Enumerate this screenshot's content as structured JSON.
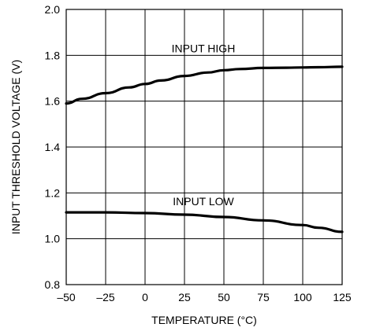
{
  "chart_data": {
    "type": "line",
    "title": "",
    "xlabel": "TEMPERATURE (°C)",
    "ylabel": "INPUT THRESHOLD VOLTAGE (V)",
    "xlim": [
      -50,
      125
    ],
    "ylim": [
      0.8,
      2.0
    ],
    "x_ticks": [
      -50,
      -25,
      0,
      25,
      50,
      75,
      100,
      125
    ],
    "x_tick_labels": [
      "–50",
      "–25",
      "0",
      "25",
      "50",
      "75",
      "100",
      "125"
    ],
    "y_ticks": [
      0.8,
      1.0,
      1.2,
      1.4,
      1.6,
      1.8,
      2.0
    ],
    "y_tick_labels": [
      "0.8",
      "1.0",
      "1.2",
      "1.4",
      "1.6",
      "1.8",
      "2.0"
    ],
    "grid": true,
    "legend": "none",
    "series": [
      {
        "name": "INPUT HIGH",
        "x": [
          -50,
          -40,
          -25,
          -10,
          0,
          10,
          25,
          40,
          50,
          60,
          75,
          90,
          100,
          110,
          125
        ],
        "y": [
          1.59,
          1.61,
          1.635,
          1.66,
          1.675,
          1.69,
          1.71,
          1.725,
          1.735,
          1.74,
          1.745,
          1.746,
          1.747,
          1.748,
          1.75
        ]
      },
      {
        "name": "INPUT LOW",
        "x": [
          -50,
          -25,
          0,
          25,
          50,
          75,
          100,
          110,
          125
        ],
        "y": [
          1.115,
          1.115,
          1.112,
          1.105,
          1.095,
          1.08,
          1.06,
          1.048,
          1.03
        ]
      }
    ],
    "annotations": [
      {
        "text": "INPUT HIGH",
        "series": "INPUT HIGH"
      },
      {
        "text": "INPUT LOW",
        "series": "INPUT LOW"
      }
    ]
  }
}
